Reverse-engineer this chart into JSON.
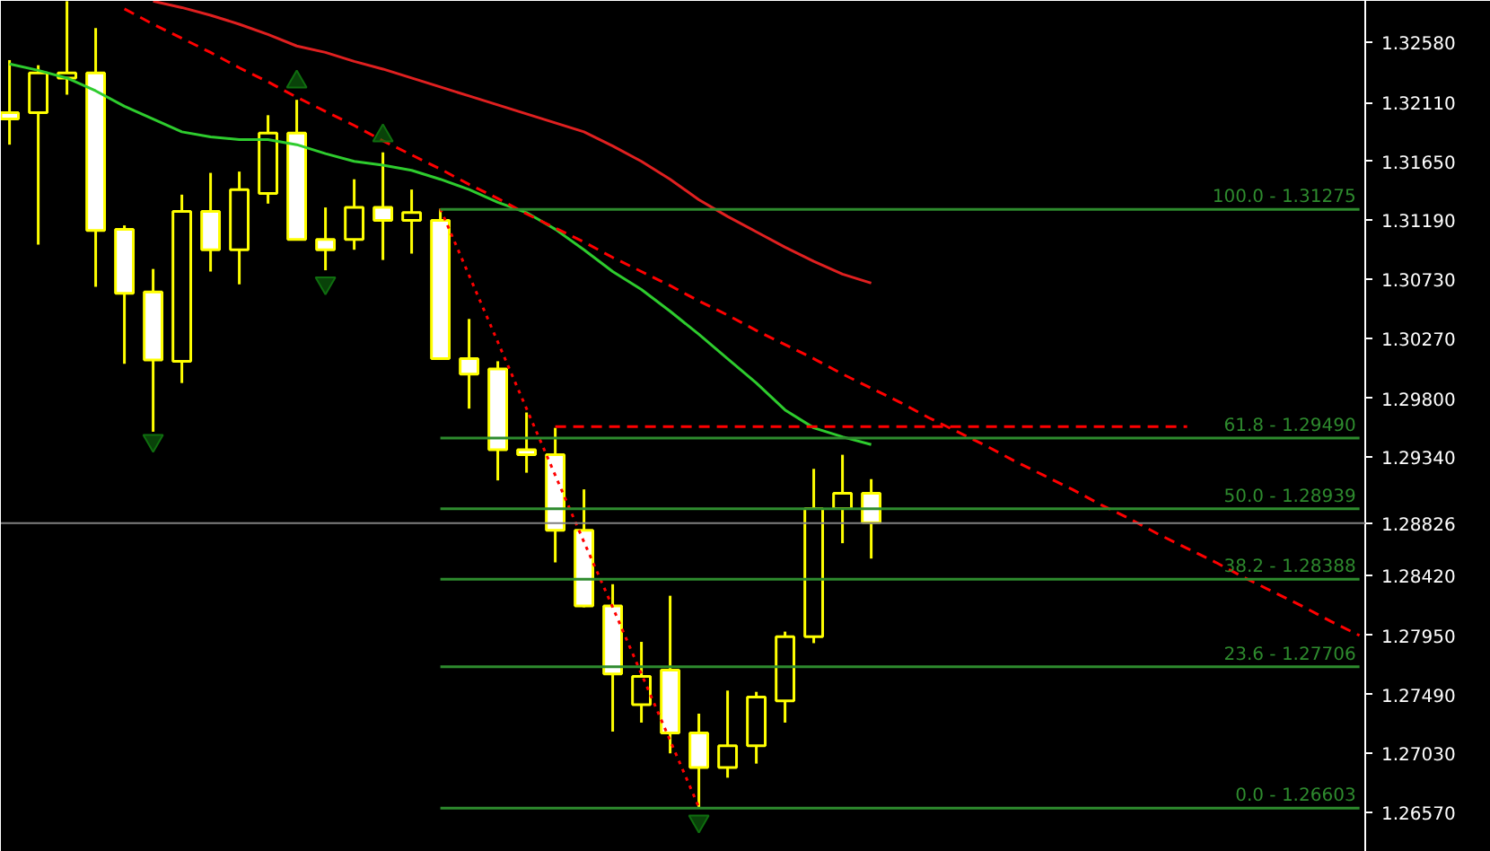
{
  "chart_data": {
    "type": "candlestick",
    "categories": [
      null,
      null,
      null,
      null,
      null,
      null,
      null,
      null,
      null,
      null,
      null,
      null,
      null,
      null,
      null,
      null,
      null,
      null,
      null,
      null,
      null,
      null,
      null,
      null,
      null,
      null,
      null,
      null,
      null,
      null,
      null,
      null,
      null,
      null,
      null,
      null,
      null,
      null,
      null,
      null,
      null,
      null,
      null,
      null,
      null,
      null,
      null,
      null
    ],
    "ohlc": [
      [
        1.3203,
        1.3244,
        1.3178,
        1.3198
      ],
      [
        1.3203,
        1.324,
        1.31,
        1.3234
      ],
      [
        1.323,
        1.329,
        1.3217,
        1.3234
      ],
      [
        1.3234,
        1.3269,
        1.3067,
        1.3111
      ],
      [
        1.3112,
        1.3115,
        1.3007,
        1.3062
      ],
      [
        1.3063,
        1.3081,
        1.2954,
        1.301
      ],
      [
        1.3009,
        1.3139,
        1.2992,
        1.3126
      ],
      [
        1.3126,
        1.3156,
        1.3079,
        1.3096
      ],
      [
        1.3096,
        1.3157,
        1.3069,
        1.3143
      ],
      [
        1.314,
        1.3201,
        1.3132,
        1.3187
      ],
      [
        1.3187,
        1.3213,
        1.3104,
        1.3104
      ],
      [
        1.3104,
        1.3129,
        1.308,
        1.3096
      ],
      [
        1.3104,
        1.3151,
        1.3096,
        1.3129
      ],
      [
        1.3129,
        1.3172,
        1.3088,
        1.3119
      ],
      [
        1.3119,
        1.3143,
        1.3093,
        1.3125
      ],
      [
        1.3119,
        1.3128,
        1.3011,
        1.3011
      ],
      [
        1.3011,
        1.3042,
        1.2972,
        1.2999
      ],
      [
        1.3003,
        1.3009,
        1.2916,
        1.294
      ],
      [
        1.294,
        1.2969,
        1.2922,
        1.2936
      ],
      [
        1.2936,
        1.2957,
        1.2852,
        1.2877
      ],
      [
        1.2877,
        1.2909,
        1.2817,
        1.2818
      ],
      [
        1.2818,
        1.2835,
        1.272,
        1.2765
      ],
      [
        1.2741,
        1.279,
        1.2727,
        1.2763
      ],
      [
        1.2768,
        1.2826,
        1.2703,
        1.2719
      ],
      [
        1.2719,
        1.2734,
        1.2661,
        1.2692
      ],
      [
        1.2692,
        1.2752,
        1.2684,
        1.2709
      ],
      [
        1.2709,
        1.2751,
        1.2695,
        1.2747
      ],
      [
        1.2744,
        1.2798,
        1.2727,
        1.2794
      ],
      [
        1.2794,
        1.2925,
        1.2789,
        1.2894
      ],
      [
        1.2894,
        1.2936,
        1.2867,
        1.2906
      ],
      [
        1.2906,
        1.2917,
        1.2855,
        1.2883
      ],
      null,
      null,
      null,
      null,
      null,
      null,
      null,
      null,
      null,
      null,
      null,
      null,
      null,
      null,
      null,
      null,
      null
    ],
    "color": "#ffff00",
    "series": [
      {
        "type": "line",
        "color": "#2ecc2e",
        "line_style": "solid",
        "values": [
          1.3241,
          1.3236,
          1.323,
          1.322,
          1.3208,
          1.3198,
          1.3188,
          1.3184,
          1.3182,
          1.3182,
          1.3178,
          1.3171,
          1.3165,
          1.3162,
          1.3158,
          1.3151,
          1.3143,
          1.3133,
          1.3125,
          1.3112,
          1.3096,
          1.3079,
          1.3065,
          1.3048,
          1.303,
          1.3011,
          1.2992,
          1.2971,
          1.2957,
          1.295,
          1.2944,
          null,
          null,
          null,
          null,
          null,
          null,
          null,
          null,
          null,
          null,
          null,
          null,
          null,
          null,
          null,
          null,
          null
        ]
      },
      {
        "type": "line",
        "color": "#e02020",
        "line_style": "solid",
        "values": [
          null,
          null,
          null,
          null,
          null,
          1.329,
          1.3285,
          1.3279,
          1.3272,
          1.3264,
          1.3255,
          1.325,
          1.3243,
          1.3237,
          1.323,
          1.3223,
          1.3216,
          1.3209,
          1.3202,
          1.3195,
          1.3188,
          1.3177,
          1.3165,
          1.3151,
          1.3135,
          1.3122,
          1.311,
          1.3098,
          1.3087,
          1.3077,
          1.307,
          null,
          null,
          null,
          null,
          null,
          null,
          null,
          null,
          null,
          null,
          null,
          null,
          null,
          null,
          null,
          null,
          null
        ]
      },
      {
        "type": "line",
        "color": "#ff0000",
        "line_style": "dashed",
        "values": [
          null,
          null,
          null,
          null,
          1.3284,
          1.3272,
          1.3261,
          1.325,
          1.3238,
          1.3227,
          1.3215,
          1.3204,
          1.3193,
          1.3181,
          1.317,
          1.3159,
          1.3147,
          1.3136,
          1.3124,
          1.3113,
          1.3102,
          1.309,
          1.3079,
          1.3068,
          1.3056,
          1.3045,
          1.3033,
          1.3022,
          1.3011,
          1.2999,
          1.2988,
          1.2977,
          1.2965,
          1.2954,
          1.2943,
          1.2931,
          1.292,
          1.2909,
          1.2897,
          1.2886,
          1.2874,
          1.2863,
          1.2852,
          1.284,
          1.2829,
          1.2818,
          1.2806,
          1.2795
        ]
      },
      {
        "type": "line",
        "color": "#ff0000",
        "line_style": "dotted",
        "values": [
          null,
          null,
          null,
          null,
          null,
          null,
          null,
          null,
          null,
          null,
          null,
          null,
          null,
          null,
          null,
          1.3128,
          1.3076,
          1.3024,
          1.2972,
          1.292,
          1.2868,
          1.2817,
          1.2765,
          1.2713,
          1.2661,
          null,
          null,
          null,
          null,
          null,
          null,
          null,
          null,
          null,
          null,
          null,
          null,
          null,
          null,
          null,
          null,
          null,
          null,
          null,
          null,
          null,
          null,
          null
        ]
      },
      {
        "type": "line",
        "color": "#ff0000",
        "line_style": "dashed",
        "values": [
          null,
          null,
          null,
          null,
          null,
          null,
          null,
          null,
          null,
          null,
          null,
          null,
          null,
          null,
          null,
          null,
          null,
          null,
          null,
          1.2958,
          1.2958,
          1.2958,
          1.2958,
          1.2958,
          1.2958,
          1.2958,
          1.2958,
          1.2958,
          1.2958,
          1.2958,
          1.2958,
          1.2958,
          1.2958,
          1.2958,
          1.2958,
          1.2958,
          1.2958,
          1.2958,
          1.2958,
          1.2958,
          1.2958,
          1.2958,
          null,
          null,
          null,
          null,
          null,
          null
        ]
      },
      {
        "type": "line",
        "color": "#2e8b2e",
        "line_style": "solid",
        "name": "100.0 - 1.31275",
        "values": [
          null,
          null,
          null,
          null,
          null,
          null,
          null,
          null,
          null,
          null,
          null,
          null,
          null,
          null,
          null,
          1.31275,
          1.31275,
          1.31275,
          1.31275,
          1.31275,
          1.31275,
          1.31275,
          1.31275,
          1.31275,
          1.31275,
          1.31275,
          1.31275,
          1.31275,
          1.31275,
          1.31275,
          1.31275,
          1.31275,
          1.31275,
          1.31275,
          1.31275,
          1.31275,
          1.31275,
          1.31275,
          1.31275,
          1.31275,
          1.31275,
          1.31275,
          1.31275,
          1.31275,
          1.31275,
          1.31275,
          1.31275,
          1.31275
        ]
      },
      {
        "type": "line",
        "color": "#2e8b2e",
        "line_style": "solid",
        "name": "61.8 - 1.29490",
        "values": [
          null,
          null,
          null,
          null,
          null,
          null,
          null,
          null,
          null,
          null,
          null,
          null,
          null,
          null,
          null,
          1.2949,
          1.2949,
          1.2949,
          1.2949,
          1.2949,
          1.2949,
          1.2949,
          1.2949,
          1.2949,
          1.2949,
          1.2949,
          1.2949,
          1.2949,
          1.2949,
          1.2949,
          1.2949,
          1.2949,
          1.2949,
          1.2949,
          1.2949,
          1.2949,
          1.2949,
          1.2949,
          1.2949,
          1.2949,
          1.2949,
          1.2949,
          1.2949,
          1.2949,
          1.2949,
          1.2949,
          1.2949,
          1.2949
        ]
      },
      {
        "type": "line",
        "color": "#2e8b2e",
        "line_style": "solid",
        "name": "50.0 - 1.28939",
        "values": [
          null,
          null,
          null,
          null,
          null,
          null,
          null,
          null,
          null,
          null,
          null,
          null,
          null,
          null,
          null,
          1.28939,
          1.28939,
          1.28939,
          1.28939,
          1.28939,
          1.28939,
          1.28939,
          1.28939,
          1.28939,
          1.28939,
          1.28939,
          1.28939,
          1.28939,
          1.28939,
          1.28939,
          1.28939,
          1.28939,
          1.28939,
          1.28939,
          1.28939,
          1.28939,
          1.28939,
          1.28939,
          1.28939,
          1.28939,
          1.28939,
          1.28939,
          1.28939,
          1.28939,
          1.28939,
          1.28939,
          1.28939,
          1.28939
        ]
      },
      {
        "type": "line",
        "color": "#2e8b2e",
        "line_style": "solid",
        "name": "38.2 - 1.28388",
        "values": [
          null,
          null,
          null,
          null,
          null,
          null,
          null,
          null,
          null,
          null,
          null,
          null,
          null,
          null,
          null,
          1.28388,
          1.28388,
          1.28388,
          1.28388,
          1.28388,
          1.28388,
          1.28388,
          1.28388,
          1.28388,
          1.28388,
          1.28388,
          1.28388,
          1.28388,
          1.28388,
          1.28388,
          1.28388,
          1.28388,
          1.28388,
          1.28388,
          1.28388,
          1.28388,
          1.28388,
          1.28388,
          1.28388,
          1.28388,
          1.28388,
          1.28388,
          1.28388,
          1.28388,
          1.28388,
          1.28388,
          1.28388,
          1.28388
        ]
      },
      {
        "type": "line",
        "color": "#2e8b2e",
        "line_style": "solid",
        "name": "23.6 - 1.27706",
        "values": [
          null,
          null,
          null,
          null,
          null,
          null,
          null,
          null,
          null,
          null,
          null,
          null,
          null,
          null,
          null,
          1.27706,
          1.27706,
          1.27706,
          1.27706,
          1.27706,
          1.27706,
          1.27706,
          1.27706,
          1.27706,
          1.27706,
          1.27706,
          1.27706,
          1.27706,
          1.27706,
          1.27706,
          1.27706,
          1.27706,
          1.27706,
          1.27706,
          1.27706,
          1.27706,
          1.27706,
          1.27706,
          1.27706,
          1.27706,
          1.27706,
          1.27706,
          1.27706,
          1.27706,
          1.27706,
          1.27706,
          1.27706,
          1.27706
        ]
      },
      {
        "type": "line",
        "color": "#2e8b2e",
        "line_style": "solid",
        "name": "0.0 - 1.26603",
        "values": [
          null,
          null,
          null,
          null,
          null,
          null,
          null,
          null,
          null,
          null,
          null,
          null,
          null,
          null,
          null,
          1.26603,
          1.26603,
          1.26603,
          1.26603,
          1.26603,
          1.26603,
          1.26603,
          1.26603,
          1.26603,
          1.26603,
          1.26603,
          1.26603,
          1.26603,
          1.26603,
          1.26603,
          1.26603,
          1.26603,
          1.26603,
          1.26603,
          1.26603,
          1.26603,
          1.26603,
          1.26603,
          1.26603,
          1.26603,
          1.26603,
          1.26603,
          1.26603,
          1.26603,
          1.26603,
          1.26603,
          1.26603,
          1.26603
        ]
      },
      {
        "type": "scatter",
        "color": "#0f6e0f",
        "marker": "triangle",
        "values": [
          null,
          null,
          null,
          null,
          null,
          null,
          null,
          null,
          null,
          null,
          1.3227,
          null,
          null,
          1.3185,
          null,
          null,
          null,
          null,
          null,
          null,
          null,
          null,
          null,
          null,
          null,
          null,
          null,
          null,
          null,
          null,
          null,
          null,
          null,
          null,
          null,
          null,
          null,
          null,
          null,
          null,
          null,
          null,
          null,
          null,
          null,
          null,
          null,
          null
        ]
      },
      {
        "type": "scatter",
        "color": "#0f6e0f",
        "marker": "triangle",
        "values": [
          null,
          null,
          null,
          null,
          null,
          1.2947,
          null,
          null,
          null,
          null,
          null,
          1.307,
          null,
          null,
          null,
          null,
          null,
          null,
          null,
          null,
          null,
          null,
          null,
          null,
          1.265,
          null,
          null,
          null,
          null,
          null,
          null,
          null,
          null,
          null,
          null,
          null,
          null,
          null,
          null,
          null,
          null,
          null,
          null,
          null,
          null,
          null,
          null,
          null
        ]
      }
    ],
    "ref_lines": [
      {
        "axis": "y",
        "value": 1.28826,
        "label": "1.28826",
        "color": "#808080"
      }
    ],
    "ylim": [
      1.26261,
      1.32902
    ],
    "yticks": [
      {
        "value": 1.3258,
        "label": "1.32580"
      },
      {
        "value": 1.3211,
        "label": "1.32110"
      },
      {
        "value": 1.3165,
        "label": "1.31650"
      },
      {
        "value": 1.3119,
        "label": "1.31190"
      },
      {
        "value": 1.3073,
        "label": "1.30730"
      },
      {
        "value": 1.3027,
        "label": "1.30270"
      },
      {
        "value": 1.298,
        "label": "1.29800"
      },
      {
        "value": 1.2934,
        "label": "1.29340"
      },
      {
        "value": 1.2842,
        "label": "1.28420"
      },
      {
        "value": 1.2795,
        "label": "1.27950"
      },
      {
        "value": 1.2749,
        "label": "1.27490"
      },
      {
        "value": 1.2703,
        "label": "1.27030"
      },
      {
        "value": 1.2657,
        "label": "1.26570"
      }
    ],
    "tick_labels": "y",
    "grid": false
  }
}
